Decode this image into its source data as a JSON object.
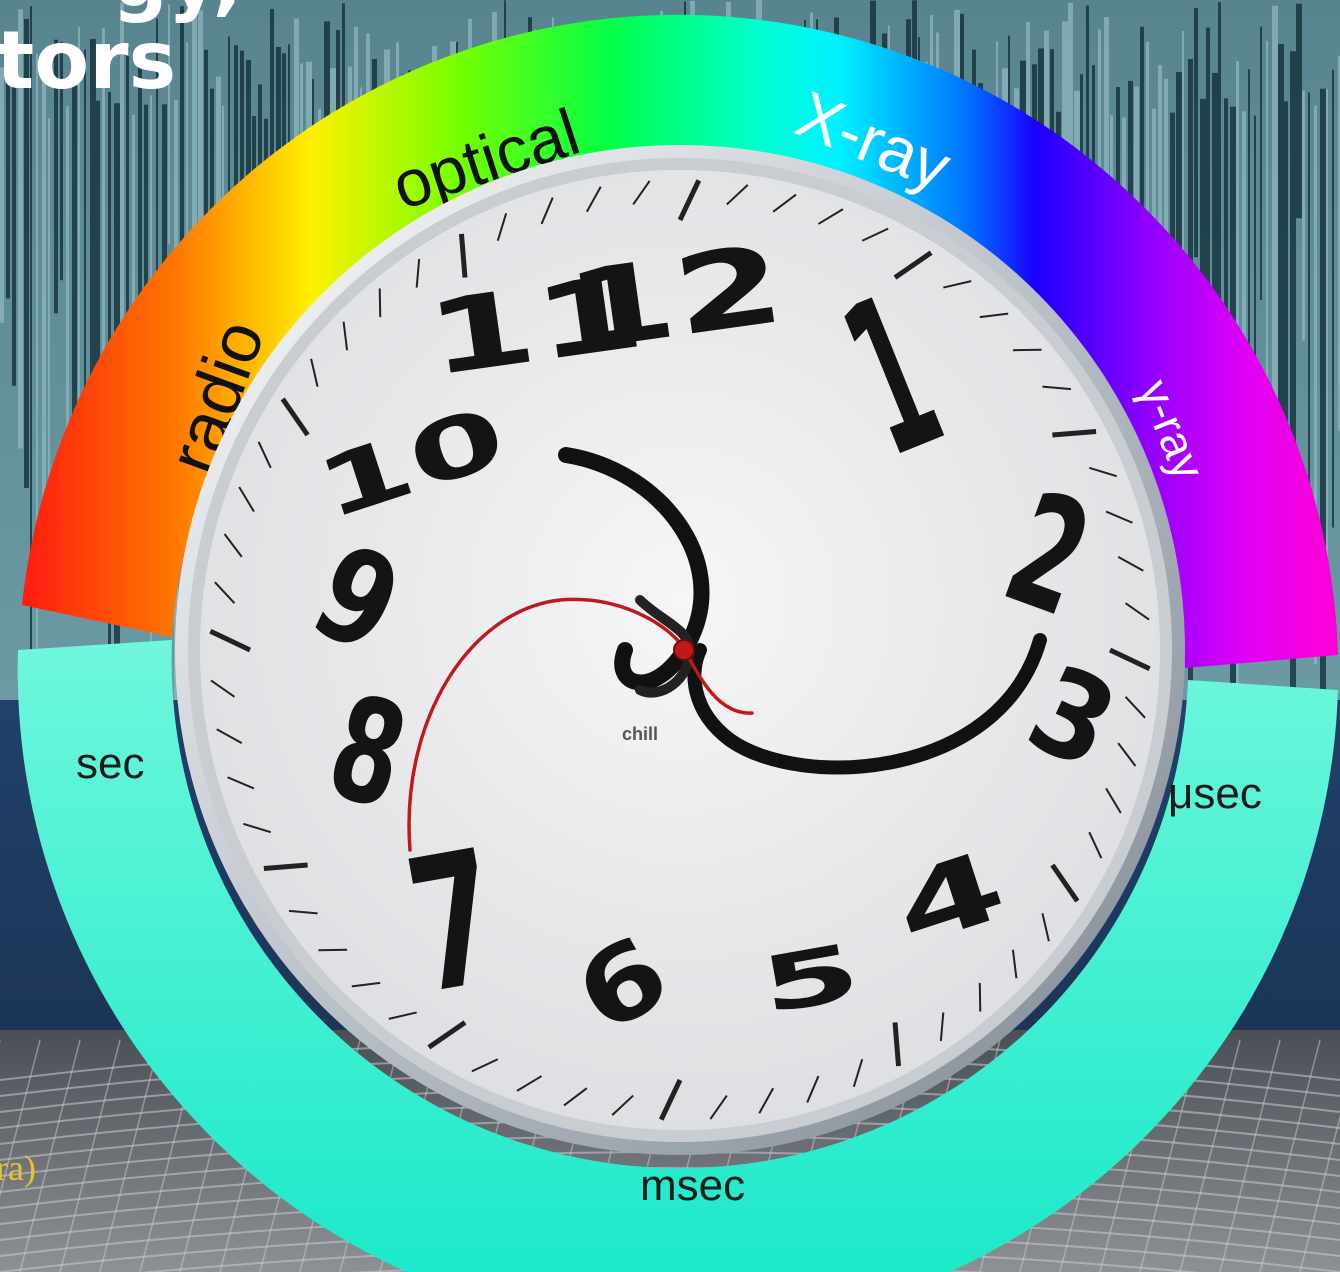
{
  "title_fragments": {
    "line1": "gy,",
    "line2": "tors"
  },
  "caption_fragment": "ra)",
  "spectrum_bands": [
    "radio",
    "optical",
    "X-ray",
    "γ-ray"
  ],
  "timescales": [
    "sec",
    "msec",
    "μsec"
  ],
  "clock": {
    "numerals": [
      "12",
      "1",
      "2",
      "3",
      "4",
      "5",
      "6",
      "7",
      "8",
      "9",
      "10",
      "11"
    ],
    "brand": "chill"
  },
  "colors": {
    "timescale_ring": "#2ef0cf",
    "second_hand": "#c0191b",
    "clock_face": "#ededee"
  }
}
